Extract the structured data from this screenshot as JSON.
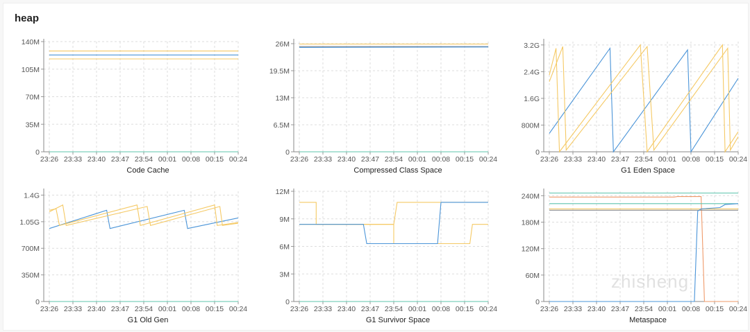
{
  "section_title": "heap",
  "watermark": "zhisheng",
  "colors": {
    "blue": "#4a94d8",
    "yellow": "#f5c964",
    "teal": "#5cc4ad",
    "orange": "#ef9a6a",
    "gray": "#8a8a8a"
  },
  "chart_data": [
    {
      "type": "line",
      "xlabel": "Code Cache",
      "xticks": [
        "23:26",
        "23:33",
        "23:40",
        "23:47",
        "23:54",
        "00:01",
        "00:08",
        "00:15",
        "00:24"
      ],
      "ylim": [
        0,
        140
      ],
      "yunit": "M",
      "yticks": [
        {
          "v": 0,
          "label": "0"
        },
        {
          "v": 35,
          "label": "35M"
        },
        {
          "v": 70,
          "label": "70M"
        },
        {
          "v": 105,
          "label": "105M"
        },
        {
          "v": 140,
          "label": "140M"
        }
      ],
      "grid": true,
      "series": [
        {
          "color": "yellow",
          "points": [
            [
              "23:26",
              128
            ],
            [
              "00:24",
              128
            ]
          ]
        },
        {
          "color": "blue",
          "points": [
            [
              "23:26",
              123
            ],
            [
              "00:24",
              123
            ]
          ]
        },
        {
          "color": "yellow",
          "points": [
            [
              "23:26",
              118
            ],
            [
              "00:24",
              118
            ]
          ]
        },
        {
          "color": "teal",
          "points": [
            [
              "23:26",
              0
            ],
            [
              "00:24",
              0
            ]
          ]
        }
      ]
    },
    {
      "type": "line",
      "xlabel": "Compressed Class Space",
      "xticks": [
        "23:26",
        "23:33",
        "23:40",
        "23:47",
        "23:54",
        "00:01",
        "00:08",
        "00:15",
        "00:24"
      ],
      "ylim": [
        0,
        26.5
      ],
      "yunit": "M",
      "yticks": [
        {
          "v": 0,
          "label": "0"
        },
        {
          "v": 6.5,
          "label": "6.5M"
        },
        {
          "v": 13,
          "label": "13M"
        },
        {
          "v": 19.5,
          "label": "19.5M"
        },
        {
          "v": 26,
          "label": "26M"
        }
      ],
      "grid": true,
      "series": [
        {
          "color": "yellow",
          "points": [
            [
              "23:26",
              25.9
            ],
            [
              "00:24",
              25.9
            ]
          ]
        },
        {
          "color": "gray",
          "points": [
            [
              "23:26",
              25.3
            ],
            [
              "00:24",
              25.3
            ]
          ]
        },
        {
          "color": "blue",
          "points": [
            [
              "23:26",
              25.1
            ],
            [
              "00:24",
              25.2
            ]
          ]
        },
        {
          "color": "teal",
          "points": [
            [
              "23:26",
              0
            ],
            [
              "00:24",
              0
            ]
          ]
        }
      ]
    },
    {
      "type": "line",
      "xlabel": "G1 Eden Space",
      "xticks": [
        "23:26",
        "23:33",
        "23:40",
        "23:47",
        "23:54",
        "00:01",
        "00:08",
        "00:15",
        "00:24"
      ],
      "ylim": [
        0,
        3.3
      ],
      "yunit": "G",
      "yticks": [
        {
          "v": 0,
          "label": "0"
        },
        {
          "v": 0.8,
          "label": "800M"
        },
        {
          "v": 1.6,
          "label": "1.6G"
        },
        {
          "v": 2.4,
          "label": "2.4G"
        },
        {
          "v": 3.2,
          "label": "3.2G"
        }
      ],
      "grid": true,
      "series": [
        {
          "color": "blue",
          "points": [
            [
              "23:26",
              0.55
            ],
            [
              "23:44",
              3.1
            ],
            [
              "23:45",
              0
            ],
            [
              "00:07",
              3.05
            ],
            [
              "00:08",
              0
            ],
            [
              "00:24",
              2.2
            ]
          ]
        },
        {
          "color": "yellow",
          "points": [
            [
              "23:26",
              2.3
            ],
            [
              "23:28",
              3.1
            ],
            [
              "23:29",
              0
            ],
            [
              "23:53",
              3.2
            ],
            [
              "23:55",
              0
            ],
            [
              "00:18",
              3.2
            ],
            [
              "00:19",
              0
            ],
            [
              "00:24",
              0.6
            ]
          ]
        },
        {
          "color": "yellow",
          "points": [
            [
              "23:26",
              2.1
            ],
            [
              "23:30",
              3.15
            ],
            [
              "23:31",
              0.05
            ],
            [
              "23:55",
              3.15
            ],
            [
              "23:57",
              0.05
            ],
            [
              "00:20",
              3.1
            ],
            [
              "00:21",
              0.05
            ],
            [
              "00:24",
              0.45
            ]
          ]
        }
      ]
    },
    {
      "type": "line",
      "xlabel": "G1 Old Gen",
      "xticks": [
        "23:26",
        "23:33",
        "23:40",
        "23:47",
        "23:54",
        "00:01",
        "00:08",
        "00:15",
        "00:24"
      ],
      "ylim": [
        0,
        1.45
      ],
      "yunit": "G",
      "yticks": [
        {
          "v": 0,
          "label": "0"
        },
        {
          "v": 0.35,
          "label": "350M"
        },
        {
          "v": 0.7,
          "label": "700M"
        },
        {
          "v": 1.05,
          "label": "1.05G"
        },
        {
          "v": 1.4,
          "label": "1.4G"
        }
      ],
      "grid": true,
      "series": [
        {
          "color": "blue",
          "points": [
            [
              "23:26",
              0.96
            ],
            [
              "23:43",
              1.2
            ],
            [
              "23:44",
              0.96
            ],
            [
              "00:06",
              1.2
            ],
            [
              "00:07",
              0.96
            ],
            [
              "00:24",
              1.1
            ]
          ]
        },
        {
          "color": "yellow",
          "points": [
            [
              "23:26",
              1.2
            ],
            [
              "23:28",
              1.22
            ],
            [
              "23:29",
              1.0
            ],
            [
              "23:52",
              1.27
            ],
            [
              "23:53",
              1.0
            ],
            [
              "00:15",
              1.27
            ],
            [
              "00:16",
              1.0
            ],
            [
              "00:24",
              1.04
            ]
          ]
        },
        {
          "color": "yellow",
          "points": [
            [
              "23:26",
              1.18
            ],
            [
              "23:30",
              1.27
            ],
            [
              "23:31",
              1.0
            ],
            [
              "23:55",
              1.25
            ],
            [
              "23:56",
              1.0
            ],
            [
              "00:17",
              1.25
            ],
            [
              "00:18",
              1.0
            ],
            [
              "00:24",
              1.03
            ]
          ]
        },
        {
          "color": "teal",
          "points": [
            [
              "23:26",
              0
            ],
            [
              "00:24",
              0
            ]
          ]
        }
      ]
    },
    {
      "type": "line",
      "xlabel": "G1 Survivor Space",
      "xticks": [
        "23:26",
        "23:33",
        "23:40",
        "23:47",
        "23:54",
        "00:01",
        "00:08",
        "00:15",
        "00:24"
      ],
      "ylim": [
        0,
        12
      ],
      "yunit": "M",
      "yticks": [
        {
          "v": 0,
          "label": "0"
        },
        {
          "v": 3,
          "label": "3M"
        },
        {
          "v": 6,
          "label": "6M"
        },
        {
          "v": 9,
          "label": "9M"
        },
        {
          "v": 12,
          "label": "12M"
        }
      ],
      "grid": true,
      "series": [
        {
          "color": "yellow",
          "points": [
            [
              "23:26",
              10.8
            ],
            [
              "23:31",
              10.8
            ],
            [
              "23:31",
              8.4
            ],
            [
              "23:54",
              8.4
            ],
            [
              "23:55",
              10.8
            ],
            [
              "00:24",
              10.8
            ]
          ]
        },
        {
          "color": "yellow",
          "points": [
            [
              "23:26",
              8.4
            ],
            [
              "23:54",
              8.4
            ],
            [
              "23:54",
              6.3
            ],
            [
              "00:17",
              6.3
            ],
            [
              "00:18",
              8.4
            ],
            [
              "00:24",
              8.4
            ]
          ]
        },
        {
          "color": "blue",
          "points": [
            [
              "23:26",
              8.4
            ],
            [
              "23:45",
              8.4
            ],
            [
              "23:46",
              6.3
            ],
            [
              "00:07",
              6.3
            ],
            [
              "00:08",
              10.8
            ],
            [
              "00:24",
              10.8
            ]
          ]
        },
        {
          "color": "teal",
          "points": [
            [
              "23:26",
              0
            ],
            [
              "00:24",
              0
            ]
          ]
        }
      ]
    },
    {
      "type": "line",
      "xlabel": "Metaspace",
      "xticks": [
        "23:26",
        "23:33",
        "23:40",
        "23:47",
        "23:54",
        "00:01",
        "00:08",
        "00:15",
        "00:24"
      ],
      "ylim": [
        0,
        250
      ],
      "yunit": "M",
      "yticks": [
        {
          "v": 0,
          "label": "0"
        },
        {
          "v": 60,
          "label": "60M"
        },
        {
          "v": 120,
          "label": "120M"
        },
        {
          "v": 180,
          "label": "180M"
        },
        {
          "v": 240,
          "label": "240M"
        }
      ],
      "grid": true,
      "series": [
        {
          "color": "teal",
          "points": [
            [
              "23:26",
              246
            ],
            [
              "00:24",
              246
            ]
          ]
        },
        {
          "color": "orange",
          "points": [
            [
              "23:26",
              237
            ],
            [
              "00:03",
              237
            ],
            [
              "00:04",
              238
            ],
            [
              "00:11",
              238
            ],
            [
              "00:12",
              0
            ],
            [
              "00:24",
              0
            ]
          ]
        },
        {
          "color": "teal",
          "points": [
            [
              "23:26",
              222
            ],
            [
              "00:24",
              222
            ]
          ]
        },
        {
          "color": "yellow",
          "points": [
            [
              "23:26",
              210
            ],
            [
              "00:24",
              210
            ]
          ]
        },
        {
          "color": "gray",
          "points": [
            [
              "23:26",
              207
            ],
            [
              "00:24",
              207
            ]
          ]
        },
        {
          "color": "blue",
          "points": [
            [
              "23:26",
              0
            ],
            [
              "00:09",
              0
            ],
            [
              "00:10",
              205
            ],
            [
              "00:11",
              210
            ],
            [
              "00:17",
              213
            ],
            [
              "00:19",
              220
            ],
            [
              "00:24",
              222
            ]
          ]
        }
      ]
    }
  ]
}
